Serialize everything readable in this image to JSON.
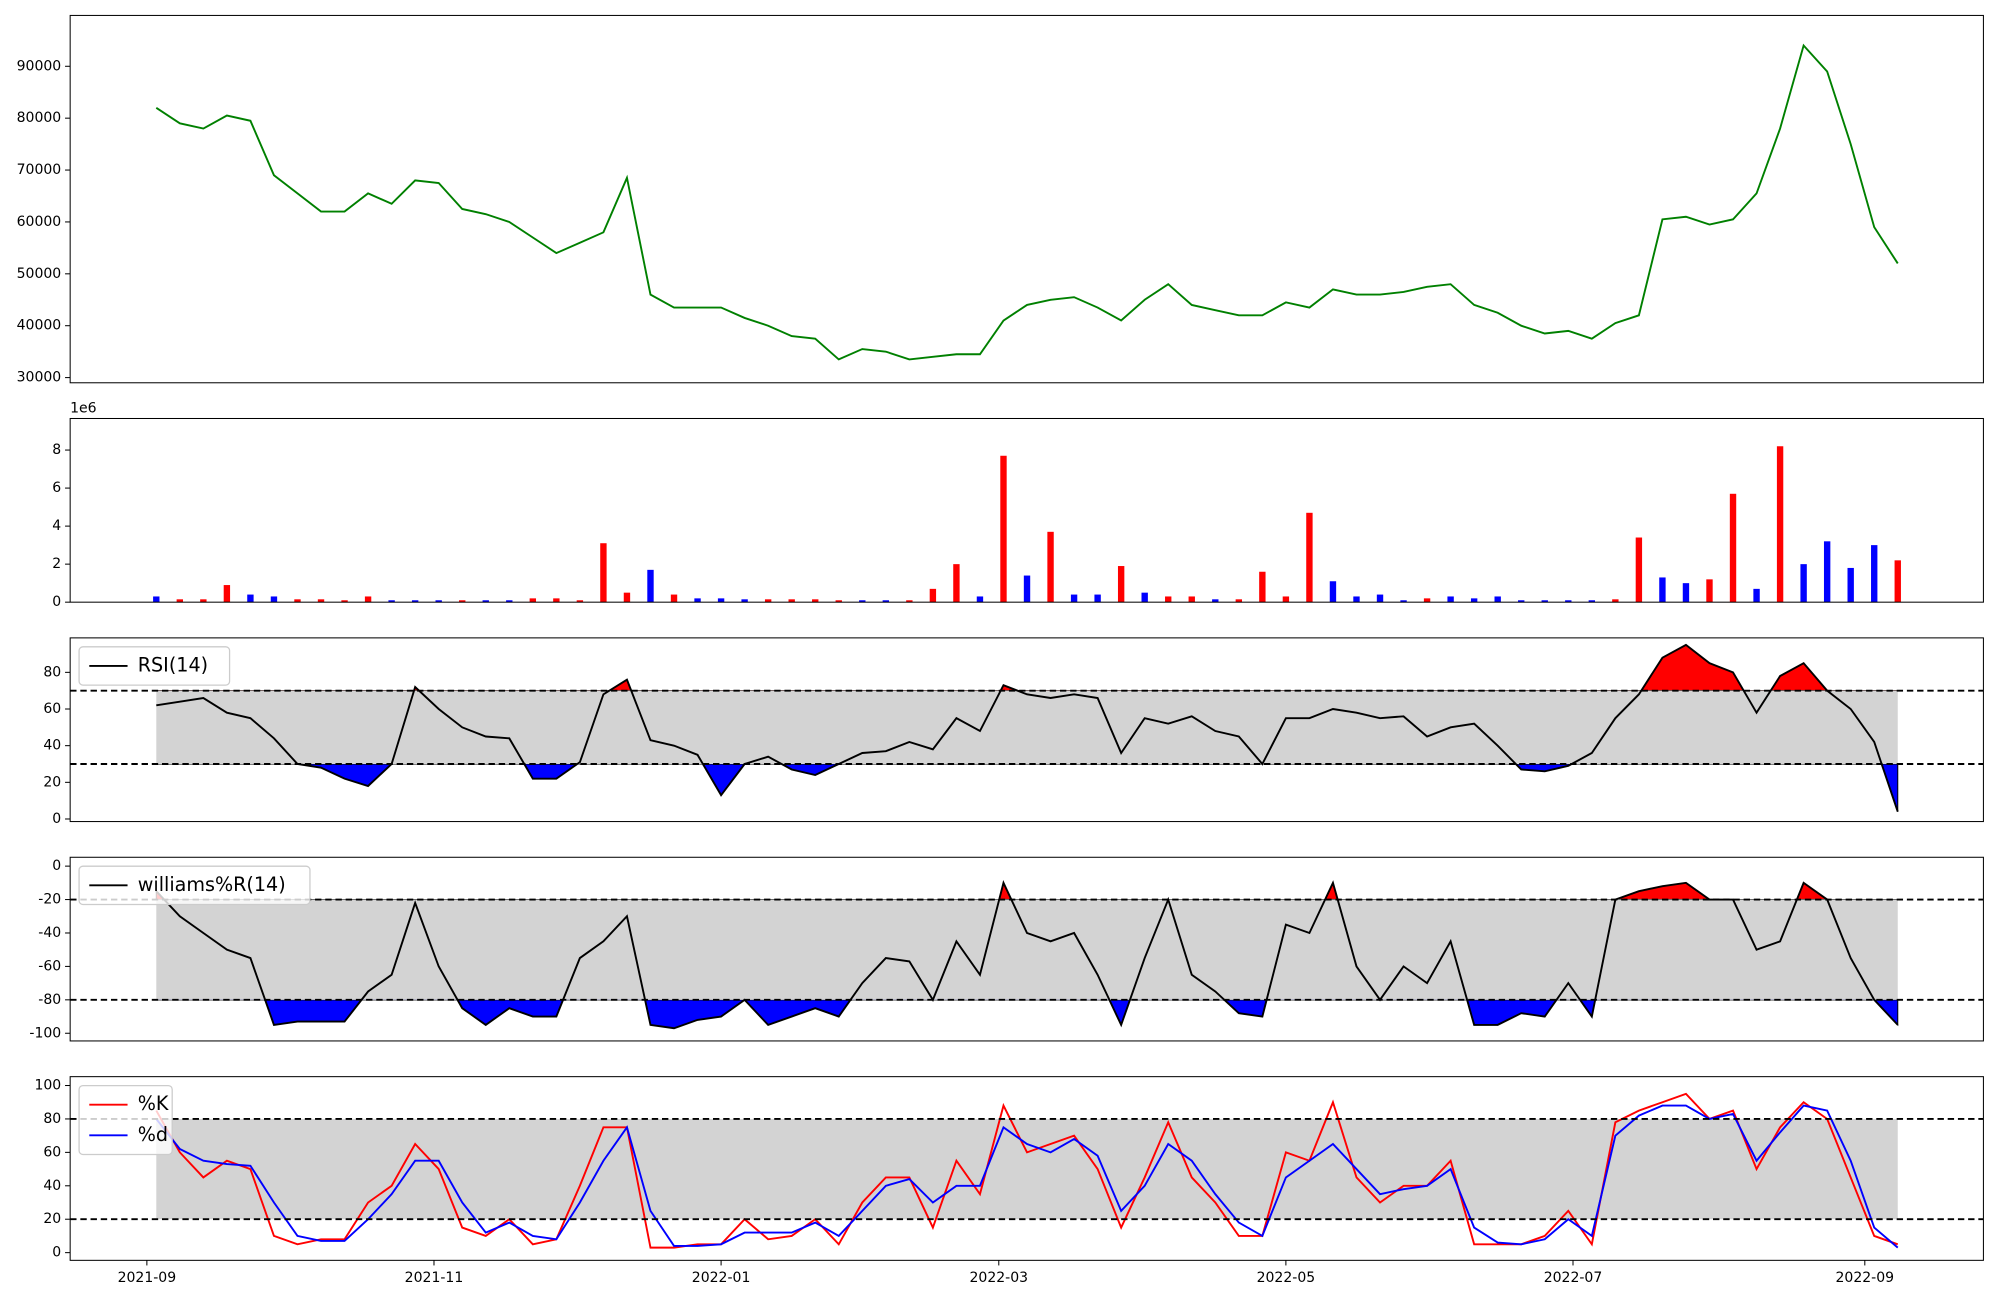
{
  "chart_data": [
    {
      "type": "line",
      "x": [
        2,
        7,
        12,
        17,
        22,
        27,
        32,
        37,
        42,
        47,
        52,
        57,
        62,
        67,
        72,
        77,
        82,
        87,
        92,
        97,
        102,
        107,
        112,
        117,
        122,
        127,
        132,
        137,
        142,
        147,
        152,
        157,
        162,
        167,
        172,
        177,
        182,
        187,
        192,
        197,
        202,
        207,
        212,
        217,
        222,
        227,
        232,
        237,
        242,
        247,
        252,
        257,
        262,
        267,
        272,
        277,
        282,
        287,
        292,
        297,
        302,
        307,
        312,
        317,
        322,
        327,
        332,
        337,
        342,
        347,
        352,
        357,
        362,
        367,
        372
      ],
      "xlim": [
        -16.3,
        390.2
      ],
      "ylim": [
        29000,
        99800
      ],
      "yticks": [
        30000,
        40000,
        50000,
        60000,
        70000,
        80000,
        90000
      ],
      "series": [
        {
          "color": "green",
          "values": [
            82000,
            79000,
            78000,
            80500,
            79500,
            69000,
            65500,
            62000,
            62000,
            65500,
            63500,
            68000,
            67500,
            62500,
            61500,
            60000,
            57000,
            54000,
            56000,
            58000,
            68500,
            46000,
            43500,
            43500,
            43500,
            41500,
            40000,
            38000,
            37500,
            33500,
            35500,
            35000,
            33500,
            34000,
            34500,
            34500,
            41000,
            44000,
            45000,
            45500,
            43500,
            41000,
            45000,
            48000,
            44000,
            43000,
            42000,
            42000,
            44500,
            43500,
            47000,
            46000,
            46000,
            46500,
            47500,
            48000,
            44000,
            42500,
            40000,
            38500,
            39000,
            37500,
            40500,
            42000,
            60500,
            61000,
            59500,
            60500,
            65500,
            78000,
            94000,
            89000,
            75000,
            59000,
            52000
          ]
        }
      ]
    },
    {
      "type": "bar",
      "x": [
        2,
        7,
        12,
        17,
        22,
        27,
        32,
        37,
        42,
        47,
        52,
        57,
        62,
        67,
        72,
        77,
        82,
        87,
        92,
        97,
        102,
        107,
        112,
        117,
        122,
        127,
        132,
        137,
        142,
        147,
        152,
        157,
        162,
        167,
        172,
        177,
        182,
        187,
        192,
        197,
        202,
        207,
        212,
        217,
        222,
        227,
        232,
        237,
        242,
        247,
        252,
        257,
        262,
        267,
        272,
        277,
        282,
        287,
        292,
        297,
        302,
        307,
        312,
        317,
        322,
        327,
        332,
        337,
        342,
        347,
        352,
        357,
        362,
        367,
        372
      ],
      "xlim": [
        -16.3,
        390.2
      ],
      "ylim": [
        0,
        9660000
      ],
      "offset_label": "1e6",
      "yticks": [
        {
          "value": 0,
          "label": "0"
        },
        {
          "value": 2000000,
          "label": "2"
        },
        {
          "value": 4000000,
          "label": "4"
        },
        {
          "value": 6000000,
          "label": "6"
        },
        {
          "value": 8000000,
          "label": "8"
        }
      ],
      "series": [
        {
          "values": [
            300000,
            150000,
            150000,
            900000,
            400000,
            300000,
            150000,
            150000,
            100000,
            300000,
            100000,
            100000,
            100000,
            100000,
            100000,
            100000,
            200000,
            200000,
            100000,
            3100000,
            500000,
            1700000,
            400000,
            200000,
            200000,
            150000,
            150000,
            150000,
            150000,
            100000,
            100000,
            100000,
            100000,
            700000,
            2000000,
            300000,
            7700000,
            1400000,
            3700000,
            400000,
            400000,
            1900000,
            500000,
            300000,
            300000,
            150000,
            150000,
            1600000,
            300000,
            4700000,
            1100000,
            300000,
            400000,
            100000,
            200000,
            300000,
            200000,
            300000,
            100000,
            100000,
            100000,
            100000,
            150000,
            3400000,
            1300000,
            1000000,
            1200000,
            5700000,
            700000,
            8200000,
            2000000,
            3200000,
            1800000,
            3000000,
            2200000
          ],
          "colors": [
            "blue",
            "red",
            "red",
            "red",
            "blue",
            "blue",
            "red",
            "red",
            "red",
            "red",
            "blue",
            "blue",
            "blue",
            "red",
            "blue",
            "blue",
            "red",
            "red",
            "red",
            "red",
            "red",
            "blue",
            "red",
            "blue",
            "blue",
            "blue",
            "red",
            "red",
            "red",
            "red",
            "blue",
            "blue",
            "red",
            "red",
            "red",
            "blue",
            "red",
            "blue",
            "red",
            "blue",
            "blue",
            "red",
            "blue",
            "red",
            "red",
            "blue",
            "red",
            "red",
            "red",
            "red",
            "blue",
            "blue",
            "blue",
            "blue",
            "red",
            "blue",
            "blue",
            "blue",
            "blue",
            "blue",
            "blue",
            "blue",
            "red",
            "red",
            "blue",
            "blue",
            "red",
            "red",
            "blue",
            "red",
            "blue",
            "blue",
            "blue",
            "blue",
            "red"
          ]
        }
      ]
    },
    {
      "type": "oscillator",
      "x": [
        2,
        7,
        12,
        17,
        22,
        27,
        32,
        37,
        42,
        47,
        52,
        57,
        62,
        67,
        72,
        77,
        82,
        87,
        92,
        97,
        102,
        107,
        112,
        117,
        122,
        127,
        132,
        137,
        142,
        147,
        152,
        157,
        162,
        167,
        172,
        177,
        182,
        187,
        192,
        197,
        202,
        207,
        212,
        217,
        222,
        227,
        232,
        237,
        242,
        247,
        252,
        257,
        262,
        267,
        272,
        277,
        282,
        287,
        292,
        297,
        302,
        307,
        312,
        317,
        322,
        327,
        332,
        337,
        342,
        347,
        352,
        357,
        362,
        367,
        372
      ],
      "xlim": [
        -16.3,
        390.2
      ],
      "ylim": [
        -1.4,
        98.8
      ],
      "yticks": [
        0,
        20,
        40,
        60,
        80
      ],
      "thresholds": [
        30,
        70
      ],
      "band_color": "lightgray",
      "fill_above_color": "red",
      "fill_below_color": "blue",
      "legend": "upper left",
      "series": [
        {
          "name": "RSI(14)",
          "color": "black",
          "values": [
            62,
            64,
            66,
            58,
            55,
            44,
            30,
            28,
            22,
            18,
            30,
            72,
            60,
            50,
            45,
            44,
            22,
            22,
            31,
            68,
            76,
            43,
            40,
            35,
            13,
            30,
            34,
            27,
            24,
            30,
            36,
            37,
            42,
            38,
            55,
            48,
            73,
            68,
            66,
            68,
            66,
            36,
            55,
            52,
            56,
            48,
            45,
            30,
            55,
            55,
            60,
            58,
            55,
            56,
            45,
            50,
            52,
            40,
            27,
            26,
            29,
            36,
            55,
            68,
            88,
            95,
            85,
            80,
            58,
            78,
            85,
            70,
            60,
            42,
            4
          ]
        }
      ]
    },
    {
      "type": "oscillator",
      "x": [
        2,
        7,
        12,
        17,
        22,
        27,
        32,
        37,
        42,
        47,
        52,
        57,
        62,
        67,
        72,
        77,
        82,
        87,
        92,
        97,
        102,
        107,
        112,
        117,
        122,
        127,
        132,
        137,
        142,
        147,
        152,
        157,
        162,
        167,
        172,
        177,
        182,
        187,
        192,
        197,
        202,
        207,
        212,
        217,
        222,
        227,
        232,
        237,
        242,
        247,
        252,
        257,
        262,
        267,
        272,
        277,
        282,
        287,
        292,
        297,
        302,
        307,
        312,
        317,
        322,
        327,
        332,
        337,
        342,
        347,
        352,
        357,
        362,
        367,
        372
      ],
      "xlim": [
        -16.3,
        390.2
      ],
      "ylim": [
        -104.6,
        5.3
      ],
      "yticks": [
        -100,
        -80,
        -60,
        -40,
        -20,
        0
      ],
      "thresholds": [
        -80,
        -20
      ],
      "band_color": "lightgray",
      "fill_above_color": "red",
      "fill_below_color": "blue",
      "legend": "upper left",
      "series": [
        {
          "name": "williams%R(14)",
          "color": "black",
          "values": [
            -15,
            -30,
            -40,
            -50,
            -55,
            -95,
            -93,
            -93,
            -93,
            -75,
            -65,
            -22,
            -60,
            -85,
            -95,
            -85,
            -90,
            -90,
            -55,
            -45,
            -30,
            -95,
            -97,
            -92,
            -90,
            -80,
            -95,
            -90,
            -85,
            -90,
            -70,
            -55,
            -57,
            -80,
            -45,
            -65,
            -10,
            -40,
            -45,
            -40,
            -65,
            -95,
            -55,
            -20,
            -65,
            -75,
            -88,
            -90,
            -35,
            -40,
            -10,
            -60,
            -80,
            -60,
            -70,
            -45,
            -95,
            -95,
            -88,
            -90,
            -70,
            -90,
            -20,
            -15,
            -12,
            -10,
            -20,
            -20,
            -50,
            -45,
            -10,
            -20,
            -55,
            -80,
            -95
          ]
        }
      ]
    },
    {
      "type": "oscillator",
      "x": [
        2,
        7,
        12,
        17,
        22,
        27,
        32,
        37,
        42,
        47,
        52,
        57,
        62,
        67,
        72,
        77,
        82,
        87,
        92,
        97,
        102,
        107,
        112,
        117,
        122,
        127,
        132,
        137,
        142,
        147,
        152,
        157,
        162,
        167,
        172,
        177,
        182,
        187,
        192,
        197,
        202,
        207,
        212,
        217,
        222,
        227,
        232,
        237,
        242,
        247,
        252,
        257,
        262,
        267,
        272,
        277,
        282,
        287,
        292,
        297,
        302,
        307,
        312,
        317,
        322,
        327,
        332,
        337,
        342,
        347,
        352,
        357,
        362,
        367,
        372
      ],
      "xlim": [
        -16.3,
        390.2
      ],
      "ylim": [
        -4.6,
        105.3
      ],
      "yticks": [
        0,
        20,
        40,
        60,
        80,
        100
      ],
      "xticks": [
        {
          "value": 0,
          "label": "2021-09"
        },
        {
          "value": 61,
          "label": "2021-11"
        },
        {
          "value": 122,
          "label": "2022-01"
        },
        {
          "value": 181,
          "label": "2022-03"
        },
        {
          "value": 242,
          "label": "2022-05"
        },
        {
          "value": 303,
          "label": "2022-07"
        },
        {
          "value": 365,
          "label": "2022-09"
        }
      ],
      "thresholds": [
        20,
        80
      ],
      "band_color": "lightgray",
      "legend": "upper left",
      "series": [
        {
          "name": "%K",
          "color": "red",
          "values": [
            85,
            60,
            45,
            55,
            50,
            10,
            5,
            8,
            8,
            30,
            40,
            65,
            50,
            15,
            10,
            20,
            5,
            8,
            40,
            75,
            75,
            3,
            3,
            5,
            5,
            20,
            8,
            10,
            20,
            5,
            30,
            45,
            45,
            15,
            55,
            35,
            88,
            60,
            65,
            70,
            50,
            15,
            45,
            78,
            45,
            30,
            10,
            10,
            60,
            55,
            90,
            45,
            30,
            40,
            40,
            55,
            5,
            5,
            5,
            10,
            25,
            5,
            78,
            85,
            90,
            95,
            80,
            85,
            50,
            75,
            90,
            80,
            45,
            10,
            5
          ]
        },
        {
          "name": "%d",
          "color": "blue",
          "values": [
            80,
            62,
            55,
            53,
            52,
            30,
            10,
            7,
            7,
            20,
            35,
            55,
            55,
            30,
            12,
            18,
            10,
            8,
            30,
            55,
            75,
            25,
            4,
            4,
            5,
            12,
            12,
            12,
            18,
            10,
            25,
            40,
            44,
            30,
            40,
            40,
            75,
            65,
            60,
            68,
            58,
            25,
            40,
            65,
            55,
            35,
            18,
            10,
            45,
            55,
            65,
            50,
            35,
            38,
            40,
            50,
            15,
            6,
            5,
            8,
            20,
            10,
            70,
            82,
            88,
            88,
            80,
            83,
            55,
            72,
            88,
            85,
            55,
            15,
            3
          ]
        }
      ]
    }
  ]
}
